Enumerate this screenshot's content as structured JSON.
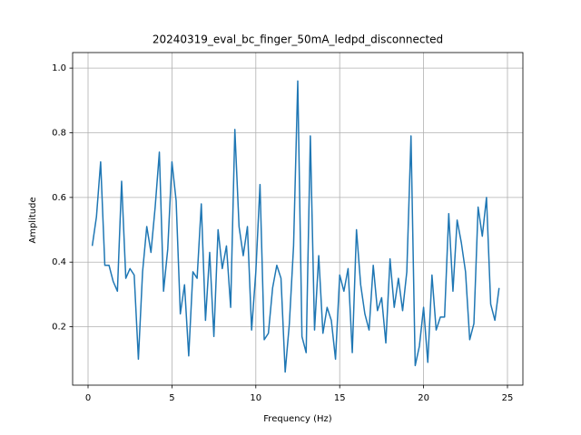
{
  "chart_data": {
    "type": "line",
    "title": "20240319_eval_bc_finger_50mA_ledpd_disconnected",
    "xlabel": "Frequency (Hz)",
    "ylabel": "Amplitude",
    "x": [
      0.25,
      0.5,
      0.75,
      1.0,
      1.25,
      1.5,
      1.75,
      2.0,
      2.25,
      2.5,
      2.75,
      3.0,
      3.25,
      3.5,
      3.75,
      4.0,
      4.25,
      4.5,
      4.75,
      5.0,
      5.25,
      5.5,
      5.75,
      6.0,
      6.25,
      6.5,
      6.75,
      7.0,
      7.25,
      7.5,
      7.75,
      8.0,
      8.25,
      8.5,
      8.75,
      9.0,
      9.25,
      9.5,
      9.75,
      10.0,
      10.25,
      10.5,
      10.75,
      11.0,
      11.25,
      11.5,
      11.75,
      12.0,
      12.25,
      12.5,
      12.75,
      13.0,
      13.25,
      13.5,
      13.75,
      14.0,
      14.25,
      14.5,
      14.75,
      15.0,
      15.25,
      15.5,
      15.75,
      16.0,
      16.25,
      16.5,
      16.75,
      17.0,
      17.25,
      17.5,
      17.75,
      18.0,
      18.25,
      18.5,
      18.75,
      19.0,
      19.25,
      19.5,
      19.75,
      20.0,
      20.25,
      20.5,
      20.75,
      21.0,
      21.25,
      21.5,
      21.75,
      22.0,
      22.25,
      22.5,
      22.75,
      23.0,
      23.25,
      23.5,
      23.75,
      24.0,
      24.25,
      24.5
    ],
    "series": [
      {
        "color": "#1f77b4",
        "values": [
          0.45,
          0.54,
          0.71,
          0.39,
          0.39,
          0.34,
          0.31,
          0.65,
          0.35,
          0.38,
          0.36,
          0.1,
          0.37,
          0.51,
          0.43,
          0.57,
          0.74,
          0.31,
          0.44,
          0.71,
          0.59,
          0.24,
          0.33,
          0.11,
          0.37,
          0.35,
          0.58,
          0.22,
          0.43,
          0.17,
          0.5,
          0.38,
          0.45,
          0.26,
          0.81,
          0.51,
          0.42,
          0.51,
          0.19,
          0.37,
          0.64,
          0.16,
          0.18,
          0.32,
          0.39,
          0.35,
          0.06,
          0.21,
          0.45,
          0.96,
          0.17,
          0.12,
          0.79,
          0.19,
          0.42,
          0.18,
          0.26,
          0.22,
          0.1,
          0.36,
          0.31,
          0.38,
          0.12,
          0.5,
          0.33,
          0.24,
          0.19,
          0.39,
          0.25,
          0.29,
          0.15,
          0.41,
          0.26,
          0.35,
          0.25,
          0.37,
          0.79,
          0.08,
          0.14,
          0.26,
          0.09,
          0.36,
          0.19,
          0.23,
          0.23,
          0.55,
          0.31,
          0.53,
          0.46,
          0.37,
          0.16,
          0.21,
          0.57,
          0.48,
          0.6,
          0.27,
          0.22,
          0.32
        ]
      }
    ],
    "xlim": [
      -0.92,
      25.92
    ],
    "ylim": [
      0.0195,
      1.048
    ],
    "xticks": [
      0,
      5,
      10,
      15,
      20,
      25
    ],
    "yticks": [
      0.2,
      0.4,
      0.6,
      0.8,
      {
        "value": 1,
        "label": "1.0"
      }
    ],
    "grid": true
  }
}
